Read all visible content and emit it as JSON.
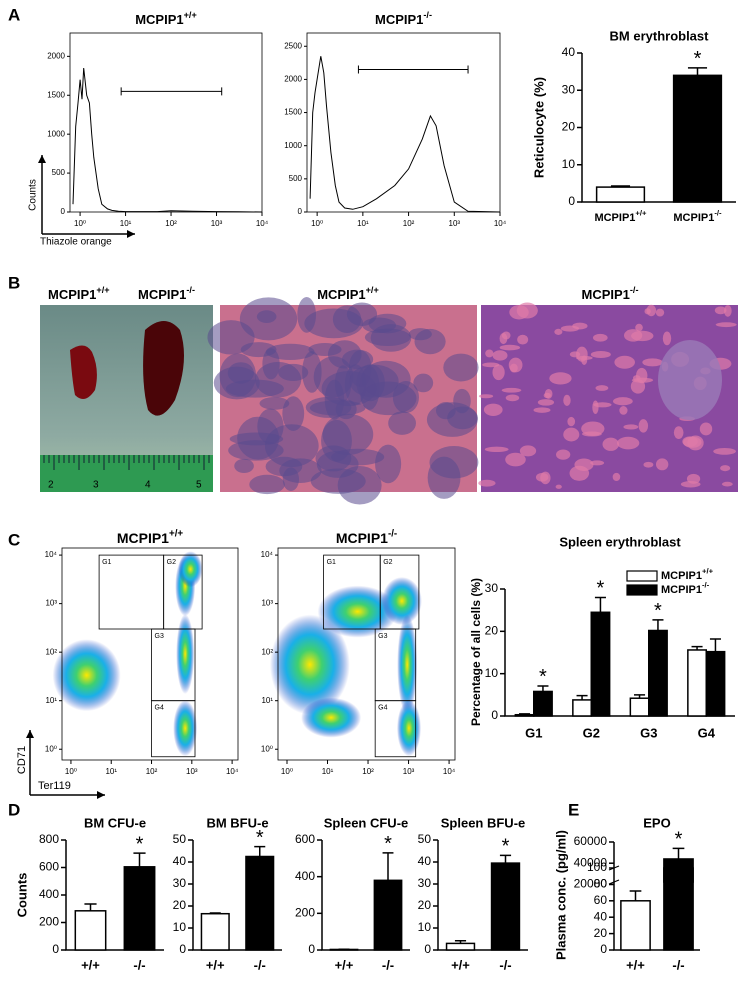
{
  "panel_labels": [
    "A",
    "B",
    "C",
    "D",
    "E"
  ],
  "photos": {
    "spleen": {
      "labels": [
        {
          "base": "MCPIP1",
          "sup": "+/+"
        },
        {
          "base": "MCPIP1",
          "sup": "-/-"
        }
      ],
      "ruler": [
        "2",
        "3",
        "4",
        "5"
      ]
    },
    "histology": [
      {
        "base": "MCPIP1",
        "sup": "+/+"
      },
      {
        "base": "MCPIP1",
        "sup": "-/-"
      }
    ]
  },
  "chart_data": [
    {
      "type": "line",
      "title": {
        "base": "MCPIP1",
        "sup": "+/+"
      },
      "xlabel": "Thiazole orange",
      "ylabel": "Counts",
      "xscale": "log",
      "xlim": [
        0.6,
        10000
      ],
      "ylim": [
        0,
        2300
      ],
      "xticks": [
        {
          "value": 1,
          "label": "10⁰"
        },
        {
          "value": 10,
          "label": "10¹"
        },
        {
          "value": 100,
          "label": "10²"
        },
        {
          "value": 1000,
          "label": "10³"
        },
        {
          "value": 10000,
          "label": "10⁴"
        }
      ],
      "yticks": [
        0,
        500,
        1000,
        1500,
        2000
      ],
      "x": [
        0.7,
        0.8,
        0.9,
        1,
        1.1,
        1.2,
        1.4,
        1.6,
        1.8,
        2,
        2.5,
        3,
        4,
        5,
        7,
        10,
        20,
        50,
        100,
        300,
        1000,
        3000,
        10000
      ],
      "values": [
        100,
        1100,
        1400,
        1700,
        1450,
        1850,
        1500,
        1400,
        1000,
        700,
        300,
        100,
        40,
        20,
        10,
        5,
        5,
        5,
        15,
        10,
        5,
        3,
        0
      ],
      "color": "#000000",
      "gate": {
        "x": [
          8,
          1300
        ],
        "y": 1550
      }
    },
    {
      "type": "line",
      "title": {
        "base": "MCPIP1",
        "sup": "-/-"
      },
      "xscale": "log",
      "xlim": [
        0.6,
        10000
      ],
      "ylim": [
        0,
        2700
      ],
      "xticks": [
        {
          "value": 1,
          "label": "10⁰"
        },
        {
          "value": 10,
          "label": "10¹"
        },
        {
          "value": 100,
          "label": "10²"
        },
        {
          "value": 1000,
          "label": "10³"
        },
        {
          "value": 10000,
          "label": "10⁴"
        }
      ],
      "yticks": [
        0,
        500,
        1000,
        1500,
        2000,
        2500
      ],
      "x": [
        0.7,
        0.8,
        0.9,
        1,
        1.2,
        1.4,
        1.6,
        2,
        2.5,
        3,
        4,
        6,
        10,
        20,
        50,
        100,
        200,
        300,
        400,
        600,
        1000,
        2000,
        10000
      ],
      "values": [
        200,
        1500,
        1800,
        2000,
        2350,
        2100,
        1600,
        900,
        400,
        150,
        60,
        40,
        80,
        200,
        400,
        650,
        1100,
        1450,
        1300,
        700,
        150,
        10,
        0
      ],
      "color": "#000000",
      "gate": {
        "x": [
          8,
          2000
        ],
        "y": 2150
      }
    },
    {
      "type": "bar",
      "title": "BM erythroblast",
      "ylabel": "Reticulocyte (%)",
      "categories": [
        {
          "base": "MCPIP1",
          "sup": "+/+"
        },
        {
          "base": "MCPIP1",
          "sup": "-/-"
        }
      ],
      "values": [
        4,
        34
      ],
      "errors": [
        0.3,
        2
      ],
      "colors": [
        "#ffffff",
        "#000000"
      ],
      "significance": [
        null,
        "*"
      ],
      "ylim": [
        0,
        40
      ],
      "yticks": [
        0,
        10,
        20,
        30,
        40
      ]
    },
    {
      "type": "density",
      "title": {
        "base": "MCPIP1",
        "sup": "+/+"
      },
      "xlabel": "Ter119",
      "ylabel": "CD71",
      "xscale": "log",
      "yscale": "log",
      "xlim": [
        0.6,
        14000
      ],
      "ylim": [
        0.6,
        14000
      ],
      "xticks": [
        {
          "value": 1,
          "label": "10⁰"
        },
        {
          "value": 10,
          "label": "10¹"
        },
        {
          "value": 100,
          "label": "10²"
        },
        {
          "value": 1000,
          "label": "10³"
        },
        {
          "value": 10000,
          "label": "10⁴"
        }
      ],
      "yticks": [
        {
          "value": 1,
          "label": "10⁰"
        },
        {
          "value": 10,
          "label": "10¹"
        },
        {
          "value": 100,
          "label": "10²"
        },
        {
          "value": 1000,
          "label": "10³"
        },
        {
          "value": 10000,
          "label": "10⁴"
        }
      ],
      "gates": [
        {
          "label": "G1",
          "x": [
            5,
            200
          ],
          "y": [
            300,
            10000
          ]
        },
        {
          "label": "G2",
          "x": [
            200,
            1800
          ],
          "y": [
            300,
            10000
          ]
        },
        {
          "label": "G3",
          "x": [
            100,
            1200
          ],
          "y": [
            10,
            300
          ]
        },
        {
          "label": "G4",
          "x": [
            100,
            1200
          ],
          "y": [
            0.7,
            10
          ]
        }
      ]
    },
    {
      "type": "density",
      "title": {
        "base": "MCPIP1",
        "sup": "-/-"
      },
      "xscale": "log",
      "yscale": "log",
      "xlim": [
        0.6,
        14000
      ],
      "ylim": [
        0.6,
        14000
      ],
      "xticks": [
        {
          "value": 1,
          "label": "10⁰"
        },
        {
          "value": 10,
          "label": "10¹"
        },
        {
          "value": 100,
          "label": "10²"
        },
        {
          "value": 1000,
          "label": "10³"
        },
        {
          "value": 10000,
          "label": "10⁴"
        }
      ],
      "yticks": [
        {
          "value": 1,
          "label": "10⁰"
        },
        {
          "value": 10,
          "label": "10¹"
        },
        {
          "value": 100,
          "label": "10²"
        },
        {
          "value": 1000,
          "label": "10³"
        },
        {
          "value": 10000,
          "label": "10⁴"
        }
      ],
      "gates": [
        {
          "label": "G1",
          "x": [
            8,
            200
          ],
          "y": [
            300,
            10000
          ]
        },
        {
          "label": "G2",
          "x": [
            200,
            1800
          ],
          "y": [
            300,
            10000
          ]
        },
        {
          "label": "G3",
          "x": [
            150,
            1500
          ],
          "y": [
            10,
            300
          ]
        },
        {
          "label": "G4",
          "x": [
            150,
            1500
          ],
          "y": [
            0.7,
            10
          ]
        }
      ]
    },
    {
      "type": "grouped-bar",
      "title": "Spleen erythroblast",
      "ylabel": "Percentage of all cells (%)",
      "categories": [
        "G1",
        "G2",
        "G3",
        "G4"
      ],
      "series": [
        {
          "name": {
            "base": "MCPIP1",
            "sup": "+/+"
          },
          "color": "#ffffff",
          "values": [
            0.3,
            3.8,
            4.2,
            15.6
          ],
          "errors": [
            0.2,
            1,
            0.8,
            0.8
          ],
          "significance": [
            null,
            null,
            null,
            null
          ]
        },
        {
          "name": {
            "base": "MCPIP1",
            "sup": "-/-"
          },
          "color": "#000000",
          "values": [
            5.8,
            24.5,
            20.2,
            15.2
          ],
          "errors": [
            1.3,
            3.5,
            2.5,
            3
          ],
          "significance": [
            "*",
            "*",
            "*",
            null
          ]
        }
      ],
      "ylim": [
        0,
        30
      ],
      "yticks": [
        0,
        10,
        20,
        30
      ],
      "legend": "top-right"
    },
    {
      "type": "bar",
      "title": "BM CFU-e",
      "ylabel": "Counts",
      "categories": [
        "+/+",
        "-/-"
      ],
      "values": [
        285,
        605
      ],
      "errors": [
        50,
        100
      ],
      "colors": [
        "#ffffff",
        "#000000"
      ],
      "significance": [
        null,
        "*"
      ],
      "ylim": [
        0,
        800
      ],
      "yticks": [
        0,
        200,
        400,
        600,
        800
      ]
    },
    {
      "type": "bar",
      "title": "BM BFU-e",
      "categories": [
        "+/+",
        "-/-"
      ],
      "values": [
        16.5,
        42.5
      ],
      "errors": [
        0.3,
        4.5
      ],
      "colors": [
        "#ffffff",
        "#000000"
      ],
      "significance": [
        null,
        "*"
      ],
      "ylim": [
        0,
        50
      ],
      "yticks": [
        0,
        10,
        20,
        30,
        40,
        50
      ]
    },
    {
      "type": "bar",
      "title": "Spleen CFU-e",
      "categories": [
        "+/+",
        "-/-"
      ],
      "values": [
        3,
        380
      ],
      "errors": [
        1,
        150
      ],
      "colors": [
        "#ffffff",
        "#000000"
      ],
      "significance": [
        null,
        "*"
      ],
      "ylim": [
        0,
        600
      ],
      "yticks": [
        0,
        200,
        400,
        600
      ]
    },
    {
      "type": "bar",
      "title": "Spleen BFU-e",
      "categories": [
        "+/+",
        "-/-"
      ],
      "values": [
        3,
        39.5
      ],
      "errors": [
        1.2,
        3.5
      ],
      "colors": [
        "#ffffff",
        "#000000"
      ],
      "significance": [
        null,
        "*"
      ],
      "ylim": [
        0,
        50
      ],
      "yticks": [
        0,
        10,
        20,
        30,
        40,
        50
      ]
    },
    {
      "type": "broken-bar",
      "title": "EPO",
      "ylabel": "Plasma conc. (pg/ml)",
      "categories": [
        "+/+",
        "-/-"
      ],
      "values": [
        60,
        44000
      ],
      "errors": [
        12,
        10000
      ],
      "colors": [
        "#ffffff",
        "#000000"
      ],
      "significance": [
        null,
        "*"
      ],
      "ylim_lower": [
        0,
        100
      ],
      "yticks_lower": [
        0,
        20,
        40,
        60,
        80,
        100
      ],
      "ylim_upper": [
        10000,
        60000
      ],
      "yticks_upper": [
        20000,
        40000,
        60000
      ]
    }
  ]
}
